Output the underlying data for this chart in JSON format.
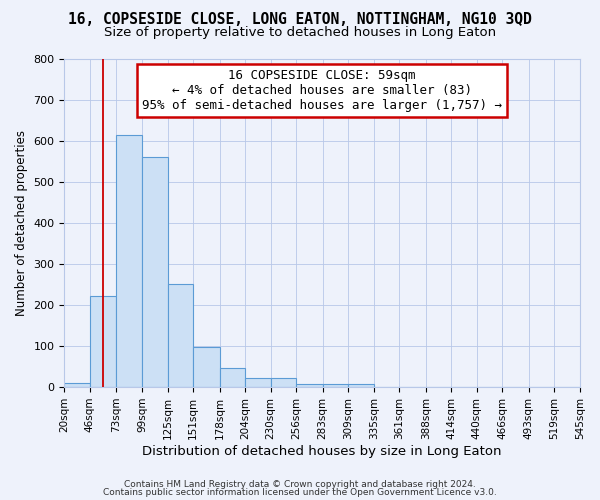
{
  "title": "16, COPSESIDE CLOSE, LONG EATON, NOTTINGHAM, NG10 3QD",
  "subtitle": "Size of property relative to detached houses in Long Eaton",
  "xlabel": "Distribution of detached houses by size in Long Eaton",
  "ylabel": "Number of detached properties",
  "bin_edges": [
    20,
    46,
    73,
    99,
    125,
    151,
    178,
    204,
    230,
    256,
    283,
    309,
    335,
    361,
    388,
    414,
    440,
    466,
    493,
    519,
    545
  ],
  "bar_heights": [
    10,
    222,
    615,
    560,
    252,
    97,
    47,
    22,
    22,
    8,
    8,
    8,
    0,
    0,
    0,
    0,
    0,
    0,
    0,
    0
  ],
  "bar_facecolor": "#cce0f5",
  "bar_edgecolor": "#5b9bd5",
  "bar_linewidth": 0.8,
  "ylim": [
    0,
    800
  ],
  "yticks": [
    0,
    100,
    200,
    300,
    400,
    500,
    600,
    700,
    800
  ],
  "red_line_x": 59,
  "red_line_color": "#cc0000",
  "annotation_line1": "16 COPSESIDE CLOSE: 59sqm",
  "annotation_line2": "← 4% of detached houses are smaller (83)",
  "annotation_line3": "95% of semi-detached houses are larger (1,757) →",
  "annotation_box_color": "#cc0000",
  "footer1": "Contains HM Land Registry data © Crown copyright and database right 2024.",
  "footer2": "Contains public sector information licensed under the Open Government Licence v3.0.",
  "background_color": "#eef2fb",
  "grid_color": "#b8c8e8",
  "title_fontsize": 10.5,
  "subtitle_fontsize": 9.5,
  "tick_label_fontsize": 7.5,
  "ylabel_fontsize": 8.5,
  "xlabel_fontsize": 9.5,
  "annotation_fontsize": 9,
  "footer_fontsize": 6.5
}
